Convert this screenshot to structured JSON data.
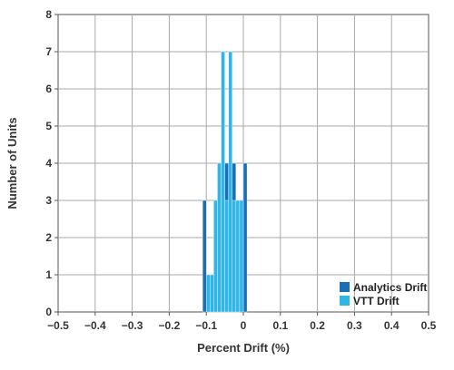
{
  "chart_data": {
    "type": "bar",
    "subtype": "histogram",
    "title": "",
    "xlabel": "Percent Drift (%)",
    "ylabel": "Number of Units",
    "xlim": [
      -0.5,
      0.5
    ],
    "ylim": [
      0,
      8
    ],
    "xticks": [
      "−0.5",
      "−0.4",
      "−0.3",
      "−0.2",
      "−0.1",
      "0",
      "0.1",
      "0.2",
      "0.3",
      "0.4",
      "0.5"
    ],
    "xtick_values": [
      -0.5,
      -0.4,
      -0.3,
      -0.2,
      -0.1,
      0,
      0.1,
      0.2,
      0.3,
      0.4,
      0.5
    ],
    "yticks": [
      "0",
      "1",
      "2",
      "3",
      "4",
      "5",
      "6",
      "7",
      "8"
    ],
    "ytick_values": [
      0,
      1,
      2,
      3,
      4,
      5,
      6,
      7,
      8
    ],
    "grid": true,
    "legend_position": "bottom-right",
    "series": [
      {
        "name": "Analytics Drift",
        "color": "#1a6fb5",
        "bin_width": 0.01,
        "bins": [
          {
            "x": -0.105,
            "count": 3
          },
          {
            "x": -0.095,
            "count": 1
          },
          {
            "x": -0.085,
            "count": 1
          },
          {
            "x": -0.075,
            "count": 1
          },
          {
            "x": -0.065,
            "count": 3
          },
          {
            "x": -0.055,
            "count": 4
          },
          {
            "x": -0.045,
            "count": 4
          },
          {
            "x": -0.035,
            "count": 4
          },
          {
            "x": -0.025,
            "count": 4
          },
          {
            "x": -0.015,
            "count": 3
          },
          {
            "x": 0.005,
            "count": 4
          }
        ]
      },
      {
        "name": "VTT Drift",
        "color": "#2fb6e6",
        "bin_width": 0.01,
        "bins": [
          {
            "x": -0.095,
            "count": 1
          },
          {
            "x": -0.085,
            "count": 1
          },
          {
            "x": -0.075,
            "count": 3
          },
          {
            "x": -0.065,
            "count": 4
          },
          {
            "x": -0.055,
            "count": 7
          },
          {
            "x": -0.045,
            "count": 3
          },
          {
            "x": -0.035,
            "count": 7
          },
          {
            "x": -0.025,
            "count": 3
          },
          {
            "x": -0.015,
            "count": 3
          },
          {
            "x": -0.005,
            "count": 3
          }
        ]
      }
    ]
  }
}
